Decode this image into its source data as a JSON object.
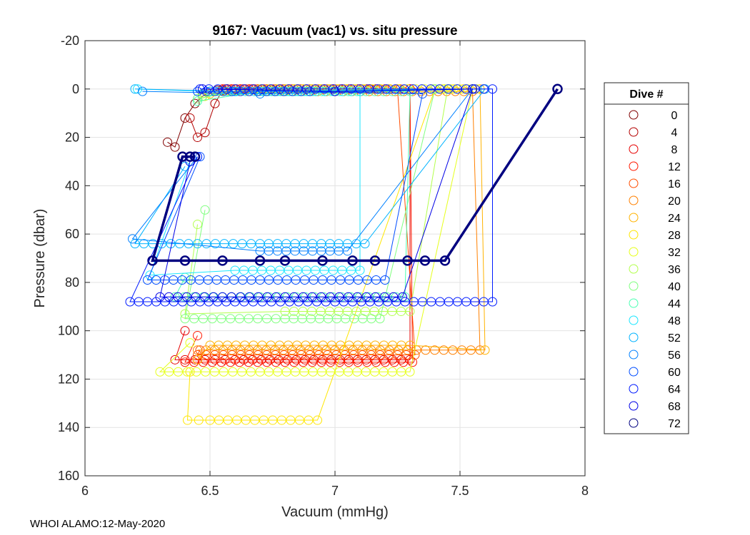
{
  "chart_data": {
    "type": "line",
    "title": "9167: Vacuum (vac1) vs. situ pressure",
    "xlabel": "Vacuum (mmHg)",
    "ylabel": "Pressure (dbar)",
    "xlim": [
      6,
      8
    ],
    "ylim": [
      -20,
      160
    ],
    "y_reversed": true,
    "grid": true,
    "xticks": [
      "6",
      "6.5",
      "7",
      "7.5",
      "8"
    ],
    "yticks": [
      "-20",
      "0",
      "20",
      "40",
      "60",
      "80",
      "100",
      "120",
      "140",
      "160"
    ],
    "legend": {
      "title": "Dive #",
      "placement": "outside-right",
      "entries": [
        "0",
        "4",
        "8",
        "12",
        "16",
        "20",
        "24",
        "28",
        "32",
        "36",
        "40",
        "44",
        "48",
        "52",
        "56",
        "60",
        "64",
        "68",
        "72"
      ],
      "colors": [
        "#800000",
        "#b30000",
        "#e60000",
        "#ff1a00",
        "#ff4d00",
        "#ff8000",
        "#ffb300",
        "#ffe600",
        "#e6ff1a",
        "#b3ff4d",
        "#80ff80",
        "#4dffb3",
        "#1ae6ff",
        "#00b3ff",
        "#0080ff",
        "#004dff",
        "#001aff",
        "#0000e6",
        "#000080"
      ]
    },
    "series": [
      {
        "name": "0",
        "color": "#800000",
        "points": [
          [
            6.33,
            22
          ],
          [
            6.36,
            24
          ],
          [
            6.4,
            12
          ],
          [
            6.44,
            6
          ],
          [
            6.47,
            3
          ],
          [
            6.5,
            1
          ],
          [
            6.53,
            0.5
          ]
        ]
      },
      {
        "name": "4",
        "color": "#b30000",
        "points": [
          [
            6.42,
            12
          ],
          [
            6.45,
            20
          ],
          [
            6.48,
            18
          ],
          [
            6.52,
            6
          ],
          [
            6.55,
            0.5
          ],
          [
            6.57,
            0
          ]
        ]
      },
      {
        "name": "8",
        "color": "#e60000",
        "points": [
          [
            6.55,
            0
          ],
          [
            6.8,
            0
          ],
          [
            7.2,
            0
          ],
          [
            7.3,
            0
          ],
          [
            7.3,
            112
          ],
          [
            6.6,
            112
          ],
          [
            6.36,
            112
          ],
          [
            6.4,
            100
          ]
        ]
      },
      {
        "name": "12",
        "color": "#ff1a00",
        "points": [
          [
            6.56,
            0
          ],
          [
            7.1,
            0
          ],
          [
            7.3,
            0
          ],
          [
            7.31,
            113
          ],
          [
            6.8,
            113
          ],
          [
            6.4,
            113
          ],
          [
            6.45,
            102
          ]
        ]
      },
      {
        "name": "16",
        "color": "#ff4d00",
        "points": [
          [
            6.57,
            0
          ],
          [
            6.9,
            0
          ],
          [
            7.25,
            0
          ],
          [
            7.32,
            110
          ],
          [
            6.9,
            110
          ],
          [
            6.45,
            110
          ],
          [
            6.46,
            108
          ]
        ]
      },
      {
        "name": "20",
        "color": "#ff8000",
        "points": [
          [
            6.55,
            1
          ],
          [
            7.0,
            1
          ],
          [
            7.55,
            1
          ],
          [
            7.58,
            108
          ],
          [
            7.0,
            108
          ],
          [
            6.45,
            108
          ]
        ]
      },
      {
        "name": "24",
        "color": "#ffb300",
        "points": [
          [
            6.5,
            2
          ],
          [
            7.0,
            1
          ],
          [
            7.58,
            0
          ],
          [
            7.6,
            108
          ],
          [
            7.3,
            106
          ],
          [
            6.5,
            106
          ],
          [
            6.45,
            112
          ]
        ]
      },
      {
        "name": "28",
        "color": "#ffe600",
        "points": [
          [
            6.48,
            3
          ],
          [
            6.8,
            1
          ],
          [
            7.55,
            0
          ],
          [
            7.4,
            0
          ],
          [
            6.93,
            137
          ],
          [
            6.5,
            137
          ],
          [
            6.41,
            137
          ],
          [
            6.42,
            117
          ]
        ]
      },
      {
        "name": "32",
        "color": "#e6ff1a",
        "points": [
          [
            6.47,
            2
          ],
          [
            6.7,
            0
          ],
          [
            7.6,
            0
          ],
          [
            7.55,
            0
          ],
          [
            7.3,
            117
          ],
          [
            6.7,
            117
          ],
          [
            6.3,
            117
          ],
          [
            6.42,
            105
          ]
        ]
      },
      {
        "name": "36",
        "color": "#b3ff4d",
        "points": [
          [
            6.47,
            3
          ],
          [
            6.6,
            1
          ],
          [
            7.45,
            0
          ],
          [
            7.3,
            92
          ],
          [
            6.8,
            92
          ],
          [
            6.4,
            93
          ],
          [
            6.45,
            56
          ]
        ]
      },
      {
        "name": "40",
        "color": "#80ff80",
        "points": [
          [
            6.45,
            4
          ],
          [
            6.6,
            1
          ],
          [
            7.4,
            0
          ],
          [
            7.18,
            95
          ],
          [
            6.8,
            95
          ],
          [
            6.4,
            95
          ],
          [
            6.48,
            50
          ]
        ]
      },
      {
        "name": "44",
        "color": "#4dffb3",
        "points": [
          [
            6.45,
            5
          ],
          [
            6.7,
            1
          ],
          [
            7.3,
            1
          ],
          [
            7.28,
            86
          ],
          [
            6.7,
            86
          ],
          [
            6.36,
            86
          ],
          [
            6.4,
            78
          ]
        ]
      },
      {
        "name": "48",
        "color": "#1ae6ff",
        "points": [
          [
            6.21,
            0
          ],
          [
            6.5,
            1
          ],
          [
            7.1,
            1
          ],
          [
            7.1,
            75
          ],
          [
            6.6,
            75
          ],
          [
            6.26,
            77
          ],
          [
            6.42,
            30
          ]
        ]
      },
      {
        "name": "52",
        "color": "#00b3ff",
        "points": [
          [
            6.2,
            0
          ],
          [
            6.6,
            1
          ],
          [
            7.6,
            0
          ],
          [
            7.12,
            64
          ],
          [
            6.7,
            64
          ],
          [
            6.2,
            64
          ],
          [
            6.4,
            32
          ]
        ]
      },
      {
        "name": "56",
        "color": "#0080ff",
        "points": [
          [
            6.23,
            1
          ],
          [
            6.7,
            2
          ],
          [
            7.55,
            0
          ],
          [
            7.05,
            67
          ],
          [
            6.7,
            67
          ],
          [
            6.19,
            62
          ],
          [
            6.45,
            28
          ]
        ]
      },
      {
        "name": "60",
        "color": "#004dff",
        "points": [
          [
            6.45,
            1
          ],
          [
            6.9,
            1
          ],
          [
            7.35,
            2
          ],
          [
            7.2,
            79
          ],
          [
            6.7,
            79
          ],
          [
            6.25,
            79
          ],
          [
            6.46,
            28
          ]
        ]
      },
      {
        "name": "64",
        "color": "#001aff",
        "points": [
          [
            6.46,
            0
          ],
          [
            7.1,
            0
          ],
          [
            7.63,
            0
          ],
          [
            7.63,
            88
          ],
          [
            7.0,
            88
          ],
          [
            6.6,
            88
          ],
          [
            6.18,
            88
          ],
          [
            6.45,
            28
          ]
        ]
      },
      {
        "name": "68",
        "color": "#0000e6",
        "points": [
          [
            6.47,
            0
          ],
          [
            7.0,
            1
          ],
          [
            7.55,
            0
          ],
          [
            7.27,
            86
          ],
          [
            6.8,
            86
          ],
          [
            6.3,
            86
          ],
          [
            6.42,
            30
          ]
        ]
      },
      {
        "name": "72",
        "color": "#000080",
        "points": [
          [
            7.89,
            0
          ],
          [
            7.44,
            71
          ],
          [
            7.36,
            71
          ],
          [
            7.29,
            71
          ],
          [
            7.16,
            71
          ],
          [
            7.07,
            71
          ],
          [
            6.95,
            71
          ],
          [
            6.8,
            71
          ],
          [
            6.7,
            71
          ],
          [
            6.55,
            71
          ],
          [
            6.4,
            71
          ],
          [
            6.27,
            71
          ],
          [
            6.39,
            28
          ],
          [
            6.42,
            28
          ],
          [
            6.44,
            28
          ]
        ]
      }
    ]
  },
  "footer": {
    "text": "WHOI ALAMO:12-May-2020"
  }
}
